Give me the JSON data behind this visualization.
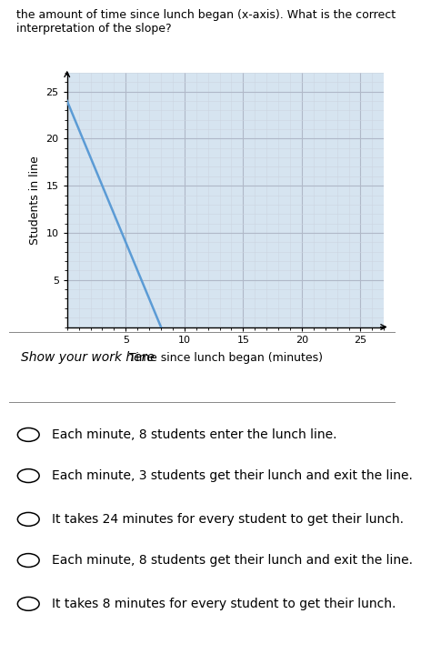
{
  "title_top": "the amount of time since lunch began (x-axis). What is the correct\ninterpretation of the slope?",
  "ylabel": "Students in line",
  "xlabel": "Time since lunch began (minutes)",
  "line_x": [
    0,
    8
  ],
  "line_y": [
    24,
    0
  ],
  "line_color": "#5b9bd5",
  "line_width": 1.8,
  "xlim": [
    0,
    27
  ],
  "ylim": [
    0,
    27
  ],
  "xticks": [
    5,
    10,
    15,
    20,
    25
  ],
  "yticks": [
    5,
    10,
    15,
    20,
    25
  ],
  "grid_major_color": "#b0b8c8",
  "grid_minor_color": "#ccd4e0",
  "bg_color": "#d6e4f0",
  "show_your_work_label": "Show your work here",
  "options": [
    "Each minute, 8 students enter the lunch line.",
    "Each minute, 3 students get their lunch and exit the line.",
    "It takes 24 minutes for every student to get their lunch.",
    "Each minute, 8 students get their lunch and exit the line.",
    "It takes 8 minutes for every student to get their lunch."
  ],
  "option_fontsize": 10,
  "axis_fontsize": 8,
  "label_fontsize": 9,
  "panel_bg": "#ffffff"
}
